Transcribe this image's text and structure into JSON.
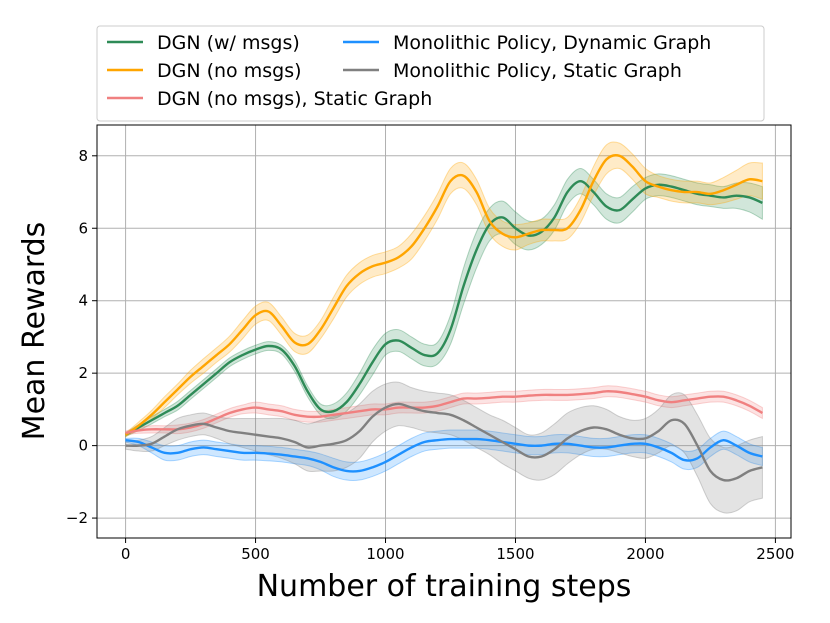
{
  "chart_data": {
    "type": "line",
    "title": "",
    "xlabel": "Number of training steps",
    "ylabel": "Mean Rewards",
    "xlim": [
      -110,
      2560
    ],
    "ylim": [
      -2.55,
      8.85
    ],
    "xticks": [
      0,
      500,
      1000,
      1500,
      2000,
      2500
    ],
    "yticks": [
      -2,
      0,
      2,
      4,
      6,
      8
    ],
    "xtick_labels": [
      "0",
      "500",
      "1000",
      "1500",
      "2000",
      "2500"
    ],
    "ytick_labels": [
      "−2",
      "0",
      "2",
      "4",
      "6",
      "8"
    ],
    "grid": true,
    "legend_position": "top",
    "series": [
      {
        "name": "DGN (w/ msgs)",
        "color": "#2e8b57",
        "x": [
          0,
          50,
          100,
          150,
          200,
          250,
          300,
          350,
          400,
          450,
          500,
          550,
          600,
          650,
          700,
          750,
          800,
          850,
          900,
          950,
          1000,
          1050,
          1100,
          1150,
          1200,
          1250,
          1300,
          1350,
          1400,
          1450,
          1500,
          1550,
          1600,
          1650,
          1700,
          1750,
          1800,
          1850,
          1900,
          1950,
          2000,
          2050,
          2100,
          2150,
          2200,
          2250,
          2300,
          2350,
          2400,
          2450
        ],
        "y": [
          0.3,
          0.5,
          0.7,
          0.9,
          1.1,
          1.4,
          1.7,
          2.0,
          2.3,
          2.5,
          2.65,
          2.75,
          2.65,
          2.2,
          1.5,
          1.0,
          0.95,
          1.2,
          1.7,
          2.3,
          2.8,
          2.9,
          2.7,
          2.5,
          2.55,
          3.2,
          4.4,
          5.4,
          6.1,
          6.3,
          6.0,
          5.8,
          5.9,
          6.3,
          7.0,
          7.3,
          7.0,
          6.6,
          6.5,
          6.8,
          7.1,
          7.2,
          7.15,
          7.05,
          6.95,
          6.9,
          6.85,
          6.9,
          6.85,
          6.7
        ],
        "band": [
          0.05,
          0.08,
          0.1,
          0.1,
          0.12,
          0.12,
          0.12,
          0.12,
          0.12,
          0.12,
          0.12,
          0.12,
          0.12,
          0.15,
          0.15,
          0.15,
          0.2,
          0.25,
          0.3,
          0.35,
          0.3,
          0.3,
          0.3,
          0.3,
          0.3,
          0.4,
          0.5,
          0.5,
          0.45,
          0.45,
          0.45,
          0.4,
          0.35,
          0.35,
          0.35,
          0.35,
          0.35,
          0.35,
          0.35,
          0.35,
          0.3,
          0.3,
          0.3,
          0.3,
          0.3,
          0.3,
          0.3,
          0.35,
          0.4,
          0.45
        ]
      },
      {
        "name": "DGN (no msgs)",
        "color": "#ffa500",
        "x": [
          0,
          50,
          100,
          150,
          200,
          250,
          300,
          350,
          400,
          450,
          500,
          550,
          600,
          650,
          700,
          750,
          800,
          850,
          900,
          950,
          1000,
          1050,
          1100,
          1150,
          1200,
          1250,
          1300,
          1350,
          1400,
          1450,
          1500,
          1550,
          1600,
          1650,
          1700,
          1750,
          1800,
          1850,
          1900,
          1950,
          2000,
          2050,
          2100,
          2150,
          2200,
          2250,
          2300,
          2350,
          2400,
          2450
        ],
        "y": [
          0.3,
          0.55,
          0.85,
          1.2,
          1.55,
          1.9,
          2.2,
          2.5,
          2.8,
          3.2,
          3.6,
          3.7,
          3.3,
          2.85,
          2.8,
          3.2,
          3.8,
          4.4,
          4.75,
          4.95,
          5.05,
          5.2,
          5.5,
          6.0,
          6.6,
          7.3,
          7.45,
          7.0,
          6.2,
          5.85,
          5.75,
          5.85,
          5.95,
          5.95,
          6.0,
          6.5,
          7.3,
          7.9,
          8.0,
          7.7,
          7.3,
          7.15,
          7.05,
          7.0,
          7.0,
          6.95,
          7.05,
          7.2,
          7.35,
          7.3
        ],
        "band": [
          0.05,
          0.1,
          0.12,
          0.15,
          0.15,
          0.18,
          0.2,
          0.2,
          0.22,
          0.25,
          0.25,
          0.25,
          0.25,
          0.25,
          0.25,
          0.25,
          0.3,
          0.3,
          0.3,
          0.3,
          0.3,
          0.3,
          0.35,
          0.35,
          0.35,
          0.35,
          0.35,
          0.35,
          0.35,
          0.35,
          0.35,
          0.3,
          0.3,
          0.3,
          0.3,
          0.35,
          0.4,
          0.4,
          0.35,
          0.35,
          0.35,
          0.3,
          0.3,
          0.3,
          0.3,
          0.3,
          0.35,
          0.4,
          0.45,
          0.5
        ]
      },
      {
        "name": "DGN (no msgs), Static Graph",
        "color": "#f08080",
        "x": [
          0,
          50,
          100,
          150,
          200,
          250,
          300,
          350,
          400,
          450,
          500,
          550,
          600,
          650,
          700,
          750,
          800,
          850,
          900,
          950,
          1000,
          1050,
          1100,
          1150,
          1200,
          1250,
          1300,
          1350,
          1400,
          1450,
          1500,
          1550,
          1600,
          1650,
          1700,
          1750,
          1800,
          1850,
          1900,
          1950,
          2000,
          2050,
          2100,
          2150,
          2200,
          2250,
          2300,
          2350,
          2400,
          2450
        ],
        "y": [
          0.35,
          0.42,
          0.45,
          0.45,
          0.45,
          0.5,
          0.6,
          0.75,
          0.9,
          1.0,
          1.05,
          1.0,
          0.95,
          0.85,
          0.8,
          0.8,
          0.85,
          0.9,
          0.95,
          1.0,
          1.0,
          1.05,
          1.05,
          1.05,
          1.1,
          1.2,
          1.3,
          1.3,
          1.32,
          1.35,
          1.35,
          1.38,
          1.4,
          1.4,
          1.4,
          1.42,
          1.45,
          1.5,
          1.48,
          1.42,
          1.35,
          1.25,
          1.2,
          1.25,
          1.3,
          1.35,
          1.35,
          1.25,
          1.1,
          0.9
        ],
        "band": [
          0.05,
          0.08,
          0.1,
          0.1,
          0.12,
          0.12,
          0.12,
          0.12,
          0.12,
          0.12,
          0.15,
          0.15,
          0.15,
          0.15,
          0.15,
          0.15,
          0.15,
          0.15,
          0.15,
          0.15,
          0.15,
          0.15,
          0.15,
          0.15,
          0.15,
          0.15,
          0.15,
          0.15,
          0.15,
          0.15,
          0.15,
          0.15,
          0.15,
          0.15,
          0.15,
          0.15,
          0.15,
          0.15,
          0.15,
          0.15,
          0.15,
          0.15,
          0.15,
          0.15,
          0.15,
          0.15,
          0.15,
          0.15,
          0.15,
          0.15
        ]
      },
      {
        "name": "Monolithic Policy, Dynamic Graph",
        "color": "#1e90ff",
        "x": [
          0,
          50,
          100,
          150,
          200,
          250,
          300,
          350,
          400,
          450,
          500,
          550,
          600,
          650,
          700,
          750,
          800,
          850,
          900,
          950,
          1000,
          1050,
          1100,
          1150,
          1200,
          1250,
          1300,
          1350,
          1400,
          1450,
          1500,
          1550,
          1600,
          1650,
          1700,
          1750,
          1800,
          1850,
          1900,
          1950,
          2000,
          2050,
          2100,
          2150,
          2200,
          2250,
          2300,
          2350,
          2400,
          2450
        ],
        "y": [
          0.15,
          0.1,
          -0.05,
          -0.2,
          -0.2,
          -0.1,
          -0.05,
          -0.1,
          -0.15,
          -0.2,
          -0.2,
          -0.22,
          -0.25,
          -0.3,
          -0.35,
          -0.45,
          -0.6,
          -0.7,
          -0.7,
          -0.6,
          -0.45,
          -0.25,
          -0.05,
          0.1,
          0.15,
          0.18,
          0.18,
          0.18,
          0.15,
          0.1,
          0.05,
          0.0,
          0.0,
          0.05,
          0.05,
          0.0,
          -0.05,
          -0.05,
          0.0,
          0.05,
          0.05,
          -0.05,
          -0.2,
          -0.4,
          -0.35,
          -0.05,
          0.15,
          0.0,
          -0.2,
          -0.3
        ],
        "band": [
          0.05,
          0.1,
          0.15,
          0.2,
          0.2,
          0.2,
          0.2,
          0.2,
          0.2,
          0.2,
          0.2,
          0.2,
          0.2,
          0.2,
          0.2,
          0.22,
          0.25,
          0.25,
          0.25,
          0.25,
          0.25,
          0.25,
          0.25,
          0.25,
          0.25,
          0.25,
          0.25,
          0.25,
          0.25,
          0.25,
          0.25,
          0.25,
          0.25,
          0.25,
          0.25,
          0.25,
          0.25,
          0.25,
          0.25,
          0.25,
          0.25,
          0.25,
          0.25,
          0.25,
          0.25,
          0.25,
          0.25,
          0.25,
          0.25,
          0.25
        ]
      },
      {
        "name": "Monolithic Policy, Static Graph",
        "color": "#808080",
        "x": [
          0,
          50,
          100,
          150,
          200,
          250,
          300,
          350,
          400,
          450,
          500,
          550,
          600,
          650,
          700,
          750,
          800,
          850,
          900,
          950,
          1000,
          1050,
          1100,
          1150,
          1200,
          1250,
          1300,
          1350,
          1400,
          1450,
          1500,
          1550,
          1600,
          1650,
          1700,
          1750,
          1800,
          1850,
          1900,
          1950,
          2000,
          2050,
          2100,
          2150,
          2200,
          2250,
          2300,
          2350,
          2400,
          2450
        ],
        "y": [
          0.0,
          0.0,
          0.05,
          0.25,
          0.45,
          0.55,
          0.6,
          0.5,
          0.4,
          0.35,
          0.3,
          0.25,
          0.2,
          0.1,
          -0.05,
          0.0,
          0.05,
          0.15,
          0.4,
          0.8,
          1.05,
          1.15,
          1.05,
          0.95,
          0.9,
          0.85,
          0.7,
          0.5,
          0.3,
          0.1,
          -0.1,
          -0.3,
          -0.3,
          -0.1,
          0.2,
          0.4,
          0.5,
          0.45,
          0.3,
          0.2,
          0.2,
          0.4,
          0.7,
          0.6,
          0.0,
          -0.7,
          -0.95,
          -0.9,
          -0.7,
          -0.6
        ],
        "band": [
          0.1,
          0.15,
          0.2,
          0.25,
          0.3,
          0.3,
          0.3,
          0.3,
          0.35,
          0.4,
          0.45,
          0.5,
          0.55,
          0.6,
          0.65,
          0.7,
          0.75,
          0.75,
          0.75,
          0.7,
          0.65,
          0.6,
          0.55,
          0.55,
          0.55,
          0.55,
          0.55,
          0.55,
          0.55,
          0.6,
          0.6,
          0.6,
          0.65,
          0.7,
          0.7,
          0.65,
          0.6,
          0.55,
          0.5,
          0.5,
          0.55,
          0.6,
          0.7,
          0.8,
          0.85,
          0.9,
          0.9,
          0.9,
          0.85,
          0.85
        ]
      }
    ]
  }
}
